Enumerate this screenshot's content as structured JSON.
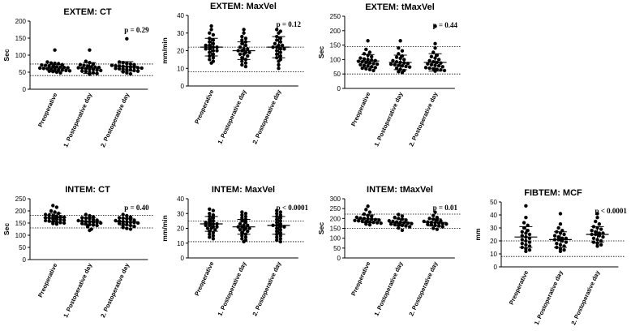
{
  "categories": [
    "Preoperative",
    "1. Postoperative day",
    "2. Postoperative day"
  ],
  "chart_data": [
    {
      "type": "scatter",
      "title": "EXTEM: CT",
      "ylabel": "Sec",
      "ylim": [
        0,
        200
      ],
      "yticks": [
        0,
        50,
        100,
        150,
        200
      ],
      "reference_lines": [
        40,
        74
      ],
      "p_value": "p = 0.29",
      "series": [
        {
          "category": "Preoperative",
          "mean": 62,
          "sd": 11,
          "values": [
            115,
            80,
            77,
            76,
            75,
            72,
            71,
            70,
            68,
            67,
            66,
            65,
            64,
            63,
            62,
            61,
            60,
            59,
            58,
            57,
            56,
            55,
            54,
            53,
            52,
            50,
            48
          ]
        },
        {
          "category": "1. Postoperative day",
          "mean": 62,
          "sd": 16,
          "values": [
            115,
            82,
            78,
            74,
            72,
            70,
            68,
            66,
            65,
            64,
            63,
            62,
            60,
            59,
            58,
            56,
            55,
            53,
            52,
            50,
            48,
            46,
            44
          ]
        },
        {
          "category": "2. Postoperative day",
          "mean": 67,
          "sd": 14,
          "values": [
            148,
            80,
            78,
            76,
            74,
            72,
            70,
            69,
            68,
            67,
            66,
            65,
            64,
            63,
            62,
            61,
            60,
            59,
            58,
            57,
            55,
            53,
            51,
            48,
            45
          ]
        }
      ]
    },
    {
      "type": "scatter",
      "title": "EXTEM: MaxVel",
      "ylabel": "mm/min",
      "ylim": [
        0,
        40
      ],
      "yticks": [
        0,
        10,
        20,
        30,
        40
      ],
      "reference_lines": [
        8,
        22
      ],
      "p_value": "p = 0.12",
      "series": [
        {
          "category": "Preoperative",
          "mean": 22,
          "sd": 5,
          "values": [
            34,
            32,
            30,
            29,
            27,
            26,
            25,
            24,
            23,
            23,
            22,
            22,
            21,
            21,
            20,
            20,
            19,
            18,
            17,
            16,
            15,
            14,
            13
          ]
        },
        {
          "category": "1. Postoperative day",
          "mean": 20,
          "sd": 5,
          "values": [
            32,
            30,
            28,
            27,
            26,
            25,
            24,
            23,
            22,
            21,
            21,
            20,
            20,
            19,
            19,
            18,
            18,
            17,
            16,
            15,
            14,
            13,
            12,
            11
          ]
        },
        {
          "category": "2. Postoperative day",
          "mean": 22,
          "sd": 6,
          "values": [
            32,
            31,
            30,
            28,
            27,
            26,
            25,
            24,
            23,
            23,
            22,
            22,
            21,
            21,
            20,
            19,
            18,
            17,
            16,
            15,
            14,
            12,
            10
          ]
        }
      ]
    },
    {
      "type": "scatter",
      "title": "EXTEM: tMaxVel",
      "ylabel": "Sec",
      "ylim": [
        0,
        250
      ],
      "yticks": [
        0,
        50,
        100,
        150,
        200,
        250
      ],
      "reference_lines": [
        50,
        145
      ],
      "p_value": "p = 0.44",
      "series": [
        {
          "category": "Preoperative",
          "mean": 95,
          "sd": 22,
          "values": [
            165,
            135,
            125,
            120,
            115,
            110,
            105,
            102,
            100,
            98,
            96,
            94,
            92,
            90,
            88,
            86,
            84,
            82,
            80,
            78,
            75,
            72,
            70,
            68,
            65,
            62
          ]
        },
        {
          "category": "1. Postoperative day",
          "mean": 90,
          "sd": 25,
          "values": [
            165,
            140,
            130,
            120,
            112,
            108,
            104,
            100,
            96,
            92,
            90,
            88,
            86,
            84,
            82,
            80,
            78,
            76,
            74,
            70,
            66,
            62,
            58,
            55
          ]
        },
        {
          "category": "2. Postoperative day",
          "mean": 90,
          "sd": 30,
          "values": [
            215,
            155,
            140,
            125,
            115,
            110,
            105,
            100,
            96,
            92,
            90,
            88,
            85,
            82,
            80,
            78,
            75,
            72,
            70,
            68,
            66,
            64,
            62,
            60
          ]
        }
      ]
    },
    {
      "type": "scatter",
      "title": "INTEM: CT",
      "ylabel": "Sec",
      "ylim": [
        0,
        250
      ],
      "yticks": [
        0,
        50,
        100,
        150,
        200,
        250
      ],
      "reference_lines": [
        130,
        182
      ],
      "p_value": "p = 0.40",
      "series": [
        {
          "category": "Preoperative",
          "mean": 172,
          "sd": 18,
          "values": [
            222,
            215,
            200,
            195,
            190,
            185,
            182,
            180,
            178,
            176,
            174,
            172,
            170,
            168,
            166,
            164,
            162,
            160,
            158,
            156,
            154,
            152,
            150,
            148,
            146
          ]
        },
        {
          "category": "1. Postoperative day",
          "mean": 158,
          "sd": 15,
          "values": [
            185,
            180,
            175,
            172,
            170,
            168,
            165,
            162,
            160,
            158,
            156,
            155,
            153,
            152,
            150,
            148,
            146,
            144,
            142,
            140,
            135,
            125,
            120
          ]
        },
        {
          "category": "2. Postoperative day",
          "mean": 155,
          "sd": 15,
          "values": [
            185,
            180,
            175,
            172,
            170,
            168,
            165,
            162,
            160,
            158,
            156,
            155,
            153,
            152,
            150,
            148,
            146,
            144,
            140,
            136,
            132,
            128,
            125
          ]
        }
      ]
    },
    {
      "type": "scatter",
      "title": "INTEM: MaxVel",
      "ylabel": "mm/min",
      "ylim": [
        0,
        40
      ],
      "yticks": [
        0,
        10,
        20,
        30,
        40
      ],
      "reference_lines": [
        11,
        25
      ],
      "p_value": "p < 0.0001",
      "series": [
        {
          "category": "Preoperative",
          "mean": 23,
          "sd": 5,
          "values": [
            33,
            32,
            30,
            29,
            28,
            27,
            26,
            25,
            24,
            24,
            23,
            23,
            22,
            22,
            21,
            21,
            20,
            20,
            19,
            18,
            17,
            16,
            15,
            14,
            13
          ]
        },
        {
          "category": "1. Postoperative day",
          "mean": 21,
          "sd": 5,
          "values": [
            31,
            30,
            29,
            28,
            27,
            26,
            25,
            24,
            23,
            22,
            22,
            21,
            21,
            20,
            20,
            19,
            19,
            18,
            17,
            16,
            15,
            14,
            13,
            12,
            11
          ]
        },
        {
          "category": "2. Postoperative day",
          "mean": 22,
          "sd": 6,
          "values": [
            32,
            31,
            30,
            29,
            28,
            27,
            26,
            25,
            24,
            23,
            22,
            22,
            21,
            21,
            20,
            19,
            18,
            17,
            16,
            15,
            14,
            13,
            12,
            11
          ]
        }
      ]
    },
    {
      "type": "scatter",
      "title": "INTEM: tMaxVel",
      "ylabel": "Sec",
      "ylim": [
        0,
        300
      ],
      "yticks": [
        0,
        50,
        100,
        150,
        200,
        250,
        300
      ],
      "reference_lines": [
        150,
        222
      ],
      "p_value": "p = 0.01",
      "series": [
        {
          "category": "Preoperative",
          "mean": 198,
          "sd": 20,
          "values": [
            262,
            245,
            232,
            222,
            215,
            210,
            206,
            202,
            200,
            198,
            196,
            194,
            192,
            190,
            188,
            186,
            184,
            182,
            180,
            178,
            176,
            172,
            168
          ]
        },
        {
          "category": "1. Postoperative day",
          "mean": 180,
          "sd": 18,
          "values": [
            220,
            212,
            205,
            200,
            196,
            192,
            188,
            185,
            182,
            180,
            178,
            176,
            174,
            172,
            170,
            168,
            165,
            162,
            158,
            152,
            140
          ]
        },
        {
          "category": "2. Postoperative day",
          "mean": 180,
          "sd": 18,
          "values": [
            232,
            215,
            205,
            200,
            196,
            192,
            188,
            185,
            182,
            180,
            178,
            176,
            174,
            172,
            170,
            168,
            165,
            162,
            158,
            150,
            145
          ]
        }
      ]
    },
    {
      "type": "scatter",
      "title": "FIBTEM: MCF",
      "ylabel": "mm",
      "ylim": [
        0,
        50
      ],
      "yticks": [
        0,
        10,
        20,
        30,
        40,
        50
      ],
      "reference_lines": [
        8,
        20
      ],
      "p_value": "p < 0.0001",
      "series": [
        {
          "category": "Preoperative",
          "mean": 23,
          "sd": 8,
          "values": [
            47,
            38,
            34,
            32,
            30,
            28,
            27,
            26,
            25,
            24,
            23,
            22,
            21,
            20,
            19,
            18,
            17,
            16,
            15,
            14,
            13,
            12
          ]
        },
        {
          "category": "1. Postoperative day",
          "mean": 21,
          "sd": 6,
          "values": [
            41,
            33,
            30,
            28,
            27,
            26,
            25,
            24,
            23,
            22,
            22,
            21,
            21,
            20,
            19,
            18,
            17,
            16,
            15,
            14,
            13,
            12
          ]
        },
        {
          "category": "2. Postoperative day",
          "mean": 25,
          "sd": 6,
          "values": [
            41,
            38,
            35,
            33,
            31,
            30,
            29,
            28,
            27,
            26,
            26,
            25,
            25,
            24,
            23,
            22,
            21,
            20,
            19,
            18,
            17,
            16
          ]
        }
      ]
    }
  ]
}
